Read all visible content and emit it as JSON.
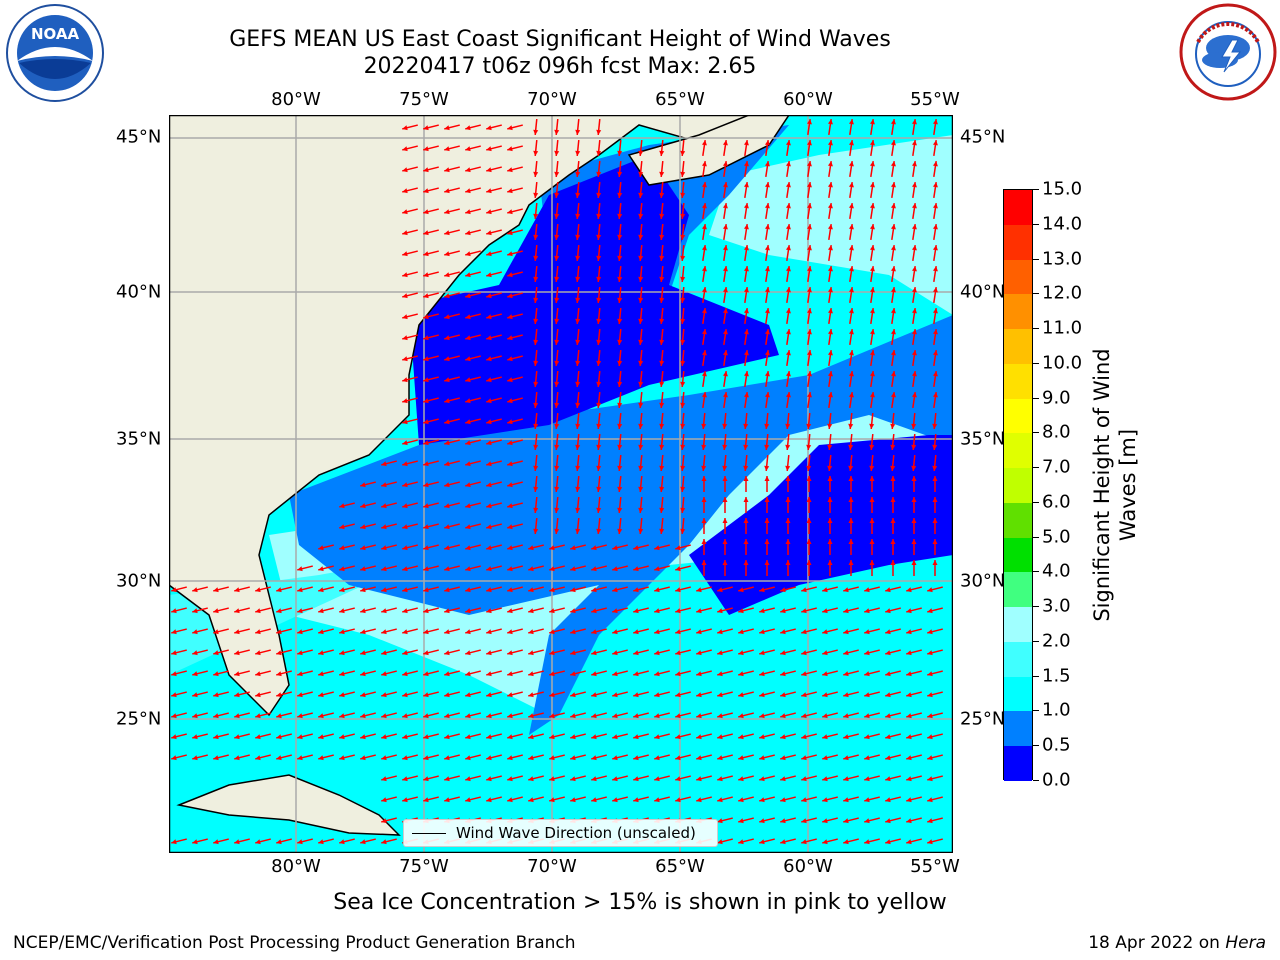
{
  "title": {
    "line1": "GEFS MEAN US East Coast Significant Height of Wind Waves",
    "line2": "20220417 t06z 096h fcst   Max: 2.65"
  },
  "logos": {
    "left": "noaa-logo",
    "left_text": "NOAA",
    "right": "nws-logo",
    "right_text": "NATIONAL WEATHER SERVICE"
  },
  "map": {
    "lon_labels": [
      "80°W",
      "75°W",
      "70°W",
      "65°W",
      "60°W",
      "55°W"
    ],
    "lat_labels": [
      "45°N",
      "40°N",
      "35°N",
      "30°N",
      "25°N"
    ],
    "extent": {
      "lon": [
        -85,
        -54.3
      ],
      "lat": [
        20.5,
        45.8
      ]
    },
    "arrow_color": "#ff0000",
    "land_color": "#efefdf",
    "grid_color": "#aaaaaa",
    "legend": {
      "label": "Wind Wave Direction (unscaled)"
    }
  },
  "colorbar": {
    "label": "Significant Height of Wind Waves [m]",
    "ticks": [
      "0.0",
      "0.5",
      "1.0",
      "1.5",
      "2.0",
      "3.0",
      "4.0",
      "5.0",
      "6.0",
      "7.0",
      "8.0",
      "9.0",
      "10.0",
      "11.0",
      "12.0",
      "13.0",
      "14.0",
      "15.0"
    ],
    "colors": [
      "#0000ff",
      "#0080ff",
      "#00ffff",
      "#40ffff",
      "#a0ffff",
      "#40ff80",
      "#00e000",
      "#60e000",
      "#c0ff00",
      "#e0ff00",
      "#ffff00",
      "#ffe000",
      "#ffc000",
      "#ff9000",
      "#ff6000",
      "#ff3000",
      "#ff0000"
    ]
  },
  "footnote": "Sea Ice Concentration > 15% is shown in pink to yellow",
  "credit": "NCEP/EMC/Verification Post Processing Product Generation Branch",
  "date": {
    "text": "18 Apr 2022 on ",
    "machine": "Hera"
  }
}
